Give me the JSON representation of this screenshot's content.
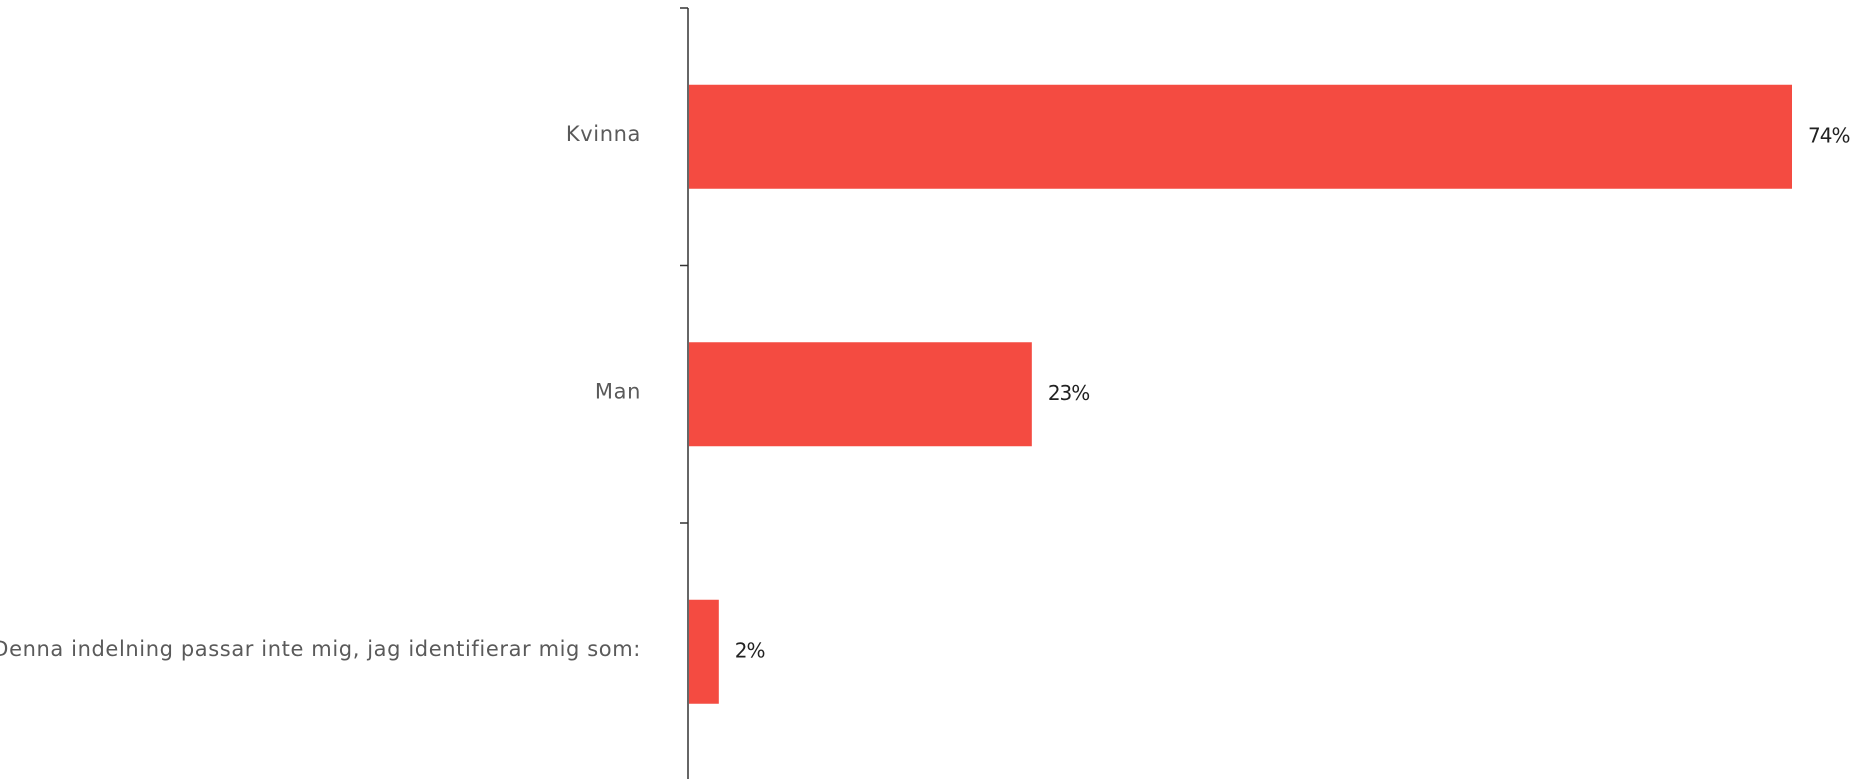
{
  "chart_data": {
    "type": "bar",
    "orientation": "horizontal",
    "categories": [
      "Kvinna",
      "Man",
      "Denna indelning passar inte mig, jag identifierar mig som:"
    ],
    "values": [
      74,
      23,
      2
    ],
    "value_labels": [
      "74%",
      "23%",
      "2%"
    ],
    "unit": "%",
    "xlim": [
      0,
      74
    ],
    "grid": false,
    "legend": "none",
    "bar_color": "#f44b41"
  }
}
